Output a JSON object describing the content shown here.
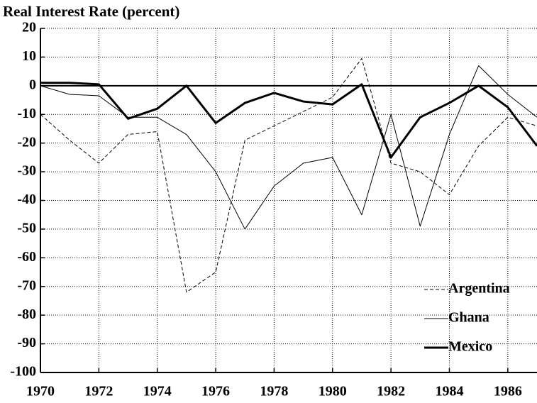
{
  "chart_data": {
    "type": "line",
    "title": "Real Interest Rate (percent)",
    "x": [
      1970,
      1971,
      1972,
      1973,
      1974,
      1975,
      1976,
      1977,
      1978,
      1979,
      1980,
      1981,
      1982,
      1983,
      1984,
      1985,
      1986,
      1987
    ],
    "series": [
      {
        "name": "Argentina",
        "color": "#000000",
        "line_style": "dashed",
        "line_width": 1,
        "values": [
          -10,
          -19,
          -27,
          -17,
          -16,
          -72,
          -65,
          -19,
          -14,
          -9,
          -4,
          9.5,
          -27,
          -30,
          -38,
          -21,
          -11,
          -14
        ]
      },
      {
        "name": "Ghana",
        "color": "#000000",
        "line_style": "solid",
        "line_width": 1,
        "values": [
          0,
          -3,
          -3.5,
          -11,
          -11,
          -17,
          -30,
          -50,
          -35,
          -27,
          -25,
          -45,
          -10,
          -49,
          -17,
          7,
          -3,
          -11
        ]
      },
      {
        "name": "Mexico",
        "color": "#000000",
        "line_style": "solid",
        "line_width": 3,
        "values": [
          1,
          1,
          0.5,
          -11.5,
          -8,
          0,
          -13,
          -6,
          -2.5,
          -5.5,
          -6.5,
          0.5,
          -25,
          -11,
          -6,
          0,
          -7.5,
          -21
        ]
      }
    ],
    "xlim": [
      1970,
      1987
    ],
    "xticks": [
      1970,
      1972,
      1974,
      1976,
      1978,
      1980,
      1982,
      1984,
      1986
    ],
    "ylim": [
      -100,
      20
    ],
    "yticks": [
      -100,
      -90,
      -80,
      -70,
      -60,
      -50,
      -40,
      -30,
      -20,
      -10,
      0,
      10,
      20
    ],
    "grid": true,
    "legend": "lower right"
  }
}
